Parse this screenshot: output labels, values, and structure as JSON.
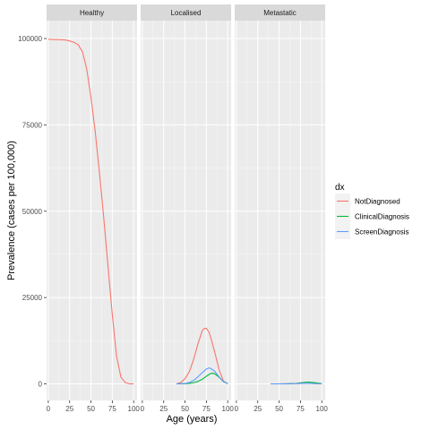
{
  "chart_data": {
    "type": "line",
    "facet_variable": "stage",
    "panels": [
      "Healthy",
      "Localised",
      "Metastatic"
    ],
    "xlabel": "Age (years)",
    "ylabel": "Prevalence (cases per 100,000)",
    "x_ticks": [
      0,
      25,
      50,
      75,
      100
    ],
    "y_ticks": [
      0,
      25000,
      50000,
      75000,
      100000
    ],
    "y_tick_labels": [
      "0",
      "25000",
      "50000",
      "75000",
      "100000"
    ],
    "xlim": [
      -2,
      104
    ],
    "ylim": [
      -5500,
      104500
    ],
    "grid": true,
    "legend": {
      "title": "dx",
      "position": "right",
      "entries": [
        "NotDiagnosed",
        "ClinicalDiagnosis",
        "ScreenDiagnosis"
      ]
    },
    "series": [
      {
        "panel": "Healthy",
        "name": "NotDiagnosed",
        "color": "#F8766D",
        "x": [
          0,
          10,
          20,
          25,
          30,
          35,
          40,
          45,
          50,
          55,
          60,
          65,
          70,
          75,
          80,
          85,
          90,
          95,
          98,
          100
        ],
        "y": [
          99800,
          99700,
          99600,
          99300,
          98900,
          98200,
          96200,
          91200,
          83000,
          73000,
          61000,
          48000,
          34000,
          20000,
          8000,
          2000,
          400,
          0,
          0,
          0
        ]
      },
      {
        "panel": "Localised",
        "name": "NotDiagnosed",
        "color": "#F8766D",
        "x": [
          40,
          45,
          50,
          55,
          60,
          65,
          70,
          72,
          75,
          78,
          80,
          85,
          90,
          95,
          100
        ],
        "y": [
          0,
          400,
          1500,
          3500,
          7000,
          11500,
          15300,
          16000,
          16100,
          15000,
          13500,
          9000,
          4000,
          800,
          0
        ]
      },
      {
        "panel": "Localised",
        "name": "ClinicalDiagnosis",
        "color": "#00BA38",
        "x": [
          40,
          50,
          55,
          60,
          65,
          70,
          75,
          80,
          82,
          85,
          90,
          95,
          100
        ],
        "y": [
          0,
          50,
          150,
          350,
          700,
          1300,
          2200,
          3000,
          3100,
          2900,
          1900,
          700,
          100
        ]
      },
      {
        "panel": "Localised",
        "name": "ScreenDiagnosis",
        "color": "#619CFF",
        "x": [
          40,
          50,
          55,
          60,
          65,
          70,
          75,
          78,
          80,
          85,
          90,
          95,
          100
        ],
        "y": [
          0,
          100,
          400,
          1000,
          2000,
          3200,
          4300,
          4600,
          4500,
          3600,
          2000,
          600,
          100
        ]
      },
      {
        "panel": "Metastatic",
        "name": "NotDiagnosed",
        "color": "#F8766D",
        "x": [
          40,
          50,
          60,
          70,
          80,
          85,
          90,
          100
        ],
        "y": [
          0,
          0,
          30,
          80,
          150,
          150,
          100,
          0
        ]
      },
      {
        "panel": "Metastatic",
        "name": "ClinicalDiagnosis",
        "color": "#00BA38",
        "x": [
          40,
          50,
          60,
          70,
          75,
          80,
          85,
          90,
          95,
          100
        ],
        "y": [
          0,
          0,
          20,
          150,
          300,
          450,
          500,
          400,
          250,
          50
        ]
      },
      {
        "panel": "Metastatic",
        "name": "ScreenDiagnosis",
        "color": "#619CFF",
        "x": [
          40,
          50,
          60,
          70,
          80,
          90,
          100
        ],
        "y": [
          0,
          0,
          50,
          120,
          180,
          120,
          0
        ]
      }
    ]
  }
}
